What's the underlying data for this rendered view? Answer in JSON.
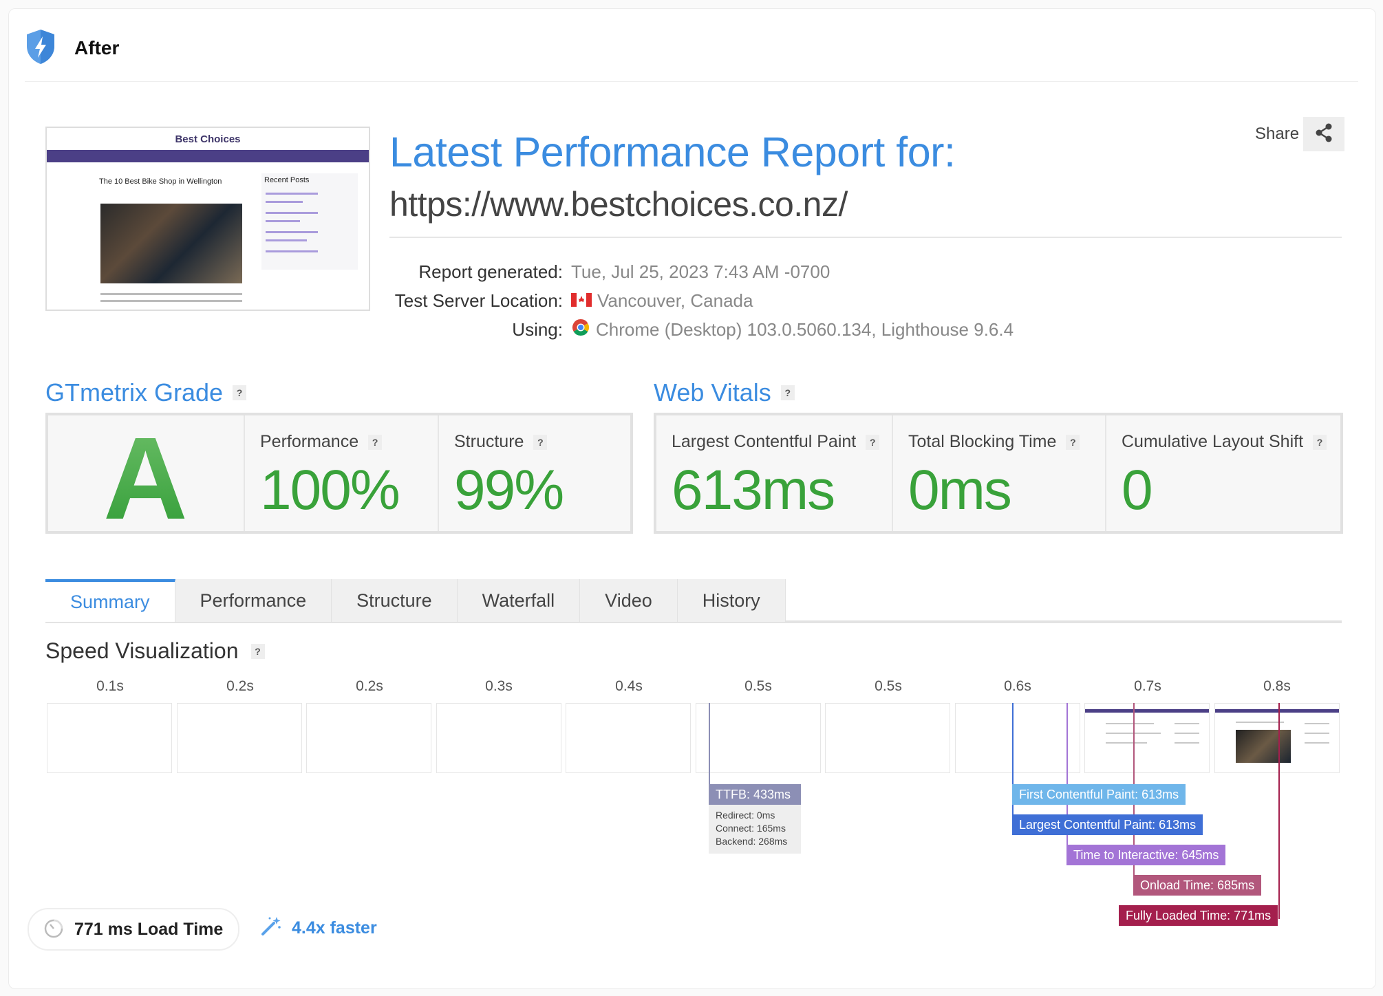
{
  "header": {
    "title": "After"
  },
  "screenshot": {
    "site_title": "Best Choices",
    "post_title": "The 10 Best Bike Shop in Wellington",
    "sidebar_title": "Recent Posts"
  },
  "report": {
    "title": "Latest Performance Report for:",
    "url": "https://www.bestchoices.co.nz/",
    "share_label": "Share",
    "meta": [
      {
        "key": "Report generated:",
        "value": "Tue, Jul 25, 2023 7:43 AM -0700"
      },
      {
        "key": "Test Server Location:",
        "value": "Vancouver, Canada",
        "icon": "canada-flag-icon"
      },
      {
        "key": "Using:",
        "value": "Chrome (Desktop) 103.0.5060.134, Lighthouse 9.6.4",
        "icon": "chrome-icon"
      }
    ]
  },
  "gtmetrix": {
    "title": "GTmetrix Grade",
    "help": "?",
    "grade": "A",
    "performance_label": "Performance",
    "performance_value": "100%",
    "structure_label": "Structure",
    "structure_value": "99%"
  },
  "vitals": {
    "title": "Web Vitals",
    "help": "?",
    "lcp_label": "Largest Contentful Paint",
    "lcp_value": "613ms",
    "tbt_label": "Total Blocking Time",
    "tbt_value": "0ms",
    "cls_label": "Cumulative Layout Shift",
    "cls_value": "0"
  },
  "tabs": [
    "Summary",
    "Performance",
    "Structure",
    "Waterfall",
    "Video",
    "History"
  ],
  "active_tab": "Summary",
  "speed": {
    "title": "Speed Visualization",
    "help": "?",
    "ticks": [
      "0.1s",
      "0.2s",
      "0.2s",
      "0.3s",
      "0.4s",
      "0.5s",
      "0.5s",
      "0.6s",
      "0.7s",
      "0.8s"
    ],
    "ttfb": {
      "label": "TTFB: 433ms",
      "redirect": "Redirect: 0ms",
      "connect": "Connect: 165ms",
      "backend": "Backend: 268ms"
    },
    "markers": [
      {
        "label": "First Contentful Paint: 613ms",
        "color": "#6fb6ea"
      },
      {
        "label": "Largest Contentful Paint: 613ms",
        "color": "#3f6fd6"
      },
      {
        "label": "Time to Interactive: 645ms",
        "color": "#a374d6"
      },
      {
        "label": "Onload Time: 685ms",
        "color": "#b2577c"
      },
      {
        "label": "Fully Loaded Time: 771ms",
        "color": "#a41f4d"
      }
    ]
  },
  "summary": {
    "load_time": "771 ms Load Time",
    "faster": "4.4x faster"
  },
  "colors": {
    "accent": "#3b8ce0",
    "good": "#39a23a"
  }
}
